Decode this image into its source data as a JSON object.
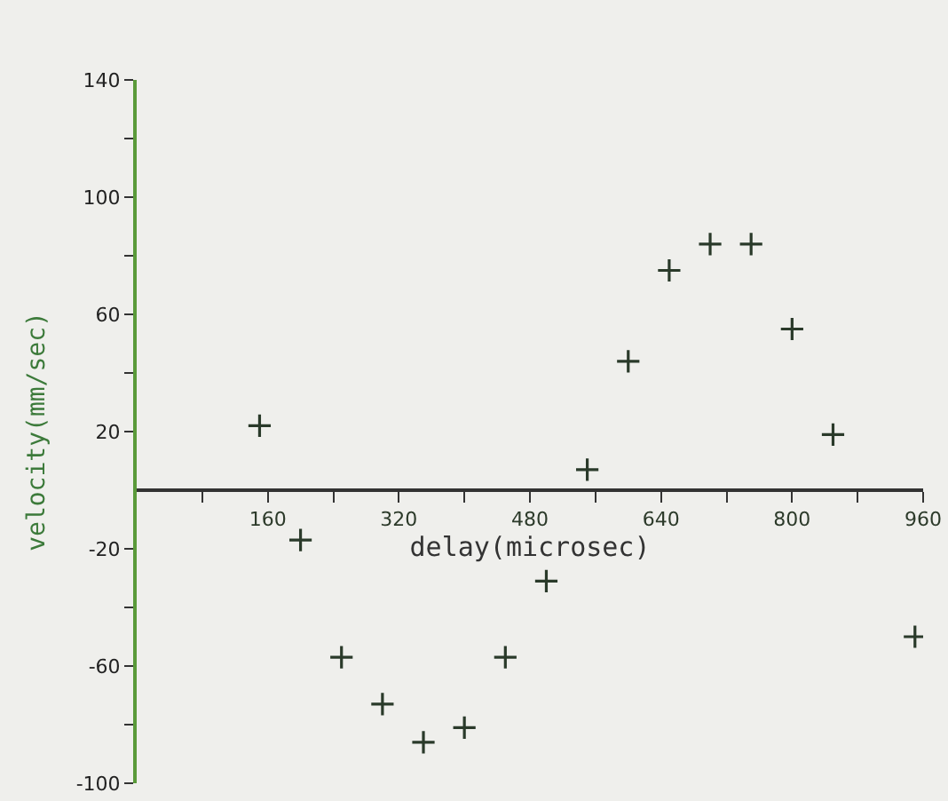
{
  "chart_data": {
    "type": "scatter",
    "xlabel": "delay(microsec)",
    "ylabel": "velocity(mm/sec)",
    "x": [
      150,
      200,
      250,
      300,
      350,
      400,
      450,
      500,
      550,
      600,
      650,
      700,
      750,
      800,
      850,
      950
    ],
    "series": [
      {
        "color": "#2a3a2a",
        "values": [
          22,
          -17,
          -57,
          -73,
          -86,
          -81,
          -57,
          -31,
          7,
          44,
          75,
          84,
          84,
          55,
          19,
          -50
        ]
      }
    ],
    "xlim": [
      0,
      960
    ],
    "ylim": [
      -100,
      140
    ],
    "xticks": [
      {
        "value": 80,
        "label": null
      },
      160,
      {
        "value": 240,
        "label": null
      },
      320,
      {
        "value": 400,
        "label": null
      },
      480,
      {
        "value": 560,
        "label": null
      },
      640,
      {
        "value": 720,
        "label": null
      },
      800,
      {
        "value": 880,
        "label": null
      },
      960
    ],
    "yticks": [
      -100,
      {
        "value": -80,
        "label": null
      },
      -60,
      {
        "value": -40,
        "label": null
      },
      -20,
      20,
      {
        "value": 40,
        "label": null
      },
      60,
      {
        "value": 80,
        "label": null
      },
      100,
      {
        "value": 120,
        "label": null
      },
      140
    ],
    "marker": "cross",
    "grid": false
  }
}
